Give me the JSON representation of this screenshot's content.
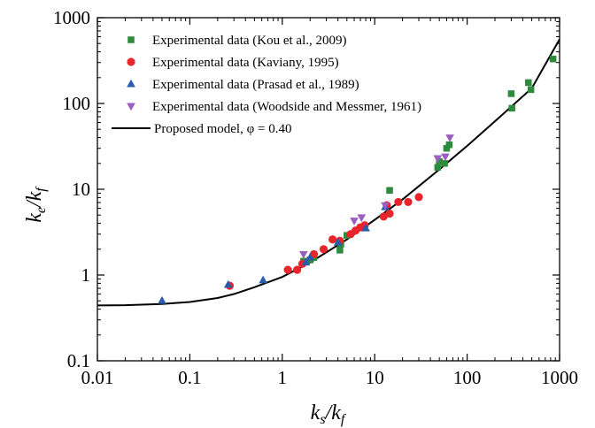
{
  "chart_data": {
    "type": "scatter",
    "x_scale": "log",
    "y_scale": "log",
    "xlim": [
      0.01,
      1000
    ],
    "ylim": [
      0.1,
      1000
    ],
    "x_ticks": [
      "0.01",
      "0.1",
      "1",
      "10",
      "100",
      "1000"
    ],
    "y_ticks": [
      "0.1",
      "1",
      "10",
      "100",
      "1000"
    ],
    "xlabel": {
      "main": "k",
      "sub1": "s",
      "slash": "/k",
      "sub2": "f"
    },
    "ylabel": {
      "main": "k",
      "sub1": "e",
      "slash": "/k",
      "sub2": "f"
    },
    "grid": false,
    "legend_position": "top-left",
    "series": [
      {
        "name": "Experimental data (Kou et al., 2009)",
        "marker": "square",
        "color": "#2e8b3e",
        "points": [
          [
            1.7,
            1.45
          ],
          [
            2.0,
            1.5
          ],
          [
            2.2,
            1.6
          ],
          [
            4.2,
            1.95
          ],
          [
            4.3,
            2.3
          ],
          [
            5.0,
            2.9
          ],
          [
            14.5,
            9.7
          ],
          [
            48,
            18
          ],
          [
            50,
            21
          ],
          [
            57,
            20
          ],
          [
            60,
            30
          ],
          [
            64,
            33
          ],
          [
            300,
            130
          ],
          [
            305,
            88
          ],
          [
            460,
            175
          ],
          [
            490,
            145
          ],
          [
            850,
            330
          ]
        ]
      },
      {
        "name": "Experimental data (Kaviany, 1995)",
        "marker": "circle",
        "color": "#e8252b",
        "points": [
          [
            0.27,
            0.75
          ],
          [
            1.15,
            1.15
          ],
          [
            1.45,
            1.15
          ],
          [
            1.65,
            1.35
          ],
          [
            2.2,
            1.75
          ],
          [
            2.8,
            2.0
          ],
          [
            3.5,
            2.6
          ],
          [
            4.2,
            2.5
          ],
          [
            5.5,
            3.0
          ],
          [
            6.2,
            3.3
          ],
          [
            7.0,
            3.6
          ],
          [
            7.8,
            3.8
          ],
          [
            12.5,
            4.8
          ],
          [
            14.5,
            5.2
          ],
          [
            13.5,
            6.5
          ],
          [
            18,
            7.1
          ],
          [
            23,
            7.1
          ],
          [
            30,
            8.1
          ]
        ]
      },
      {
        "name": "Experimental data (Prasad et al., 1989)",
        "marker": "triangle-up",
        "color": "#2a5caa",
        "points": [
          [
            0.05,
            0.5
          ],
          [
            0.26,
            0.77
          ],
          [
            0.62,
            0.87
          ],
          [
            1.8,
            1.4
          ],
          [
            2.0,
            1.6
          ],
          [
            4.0,
            2.4
          ],
          [
            8.0,
            3.5
          ],
          [
            13.0,
            6.2
          ]
        ]
      },
      {
        "name": "Experimental data (Woodside and Messmer, 1961)",
        "marker": "triangle-down",
        "color": "#9b5fc0",
        "points": [
          [
            1.7,
            1.75
          ],
          [
            6.0,
            4.3
          ],
          [
            7.2,
            4.7
          ],
          [
            13.0,
            6.5
          ],
          [
            48,
            23
          ],
          [
            58,
            24
          ],
          [
            65,
            40
          ]
        ]
      },
      {
        "name": "Proposed model, φ = 0.40",
        "marker": "line",
        "color": "#000000",
        "points": [
          [
            0.01,
            0.442
          ],
          [
            0.02,
            0.445
          ],
          [
            0.05,
            0.46
          ],
          [
            0.1,
            0.485
          ],
          [
            0.2,
            0.54
          ],
          [
            0.3,
            0.6
          ],
          [
            0.5,
            0.72
          ],
          [
            1.0,
            0.95
          ],
          [
            2.0,
            1.4
          ],
          [
            5.0,
            2.6
          ],
          [
            10,
            4.4
          ],
          [
            20,
            7.6
          ],
          [
            50,
            17
          ],
          [
            100,
            32
          ],
          [
            200,
            62
          ],
          [
            500,
            150
          ],
          [
            1000,
            560
          ]
        ]
      }
    ]
  }
}
